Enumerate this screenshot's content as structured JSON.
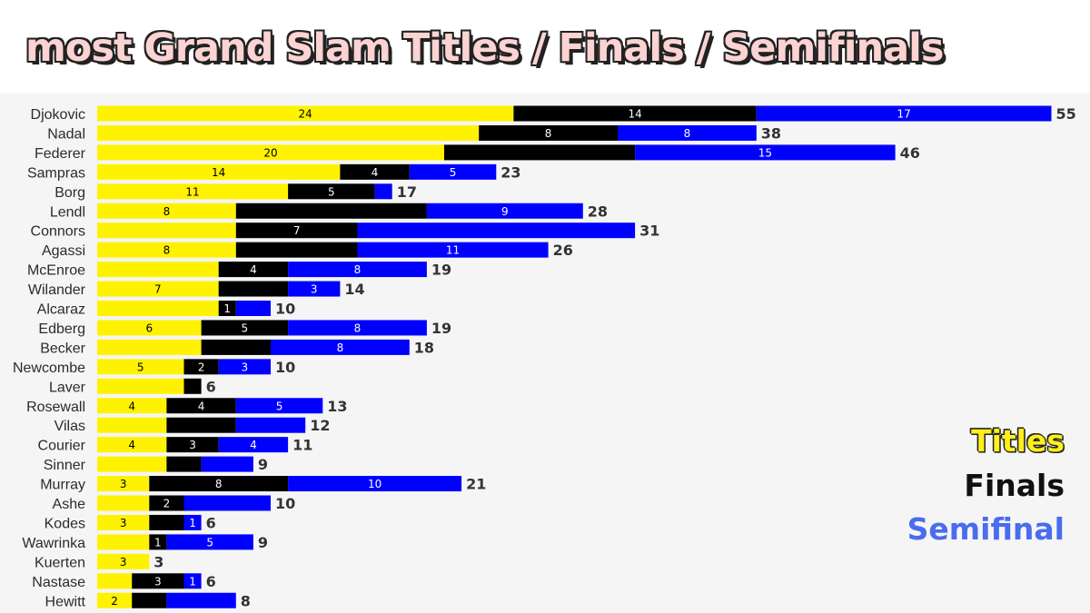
{
  "title": "most Grand Slam Titles / Finals / Semifinals",
  "legend": {
    "titles": "Titles",
    "finals": "Finals",
    "semifinal": "Semifinal"
  },
  "colors": {
    "titles": "#fff200",
    "finals": "#000000",
    "semifinals": "#0000ff",
    "background": "#f5f5f5",
    "title_fill": "#fbd3d3"
  },
  "chart_data": {
    "type": "bar",
    "orientation": "horizontal",
    "stacked": true,
    "title": "most Grand Slam Titles / Finals / Semifinals",
    "legend_position": "bottom-right",
    "grid": false,
    "series": [
      {
        "name": "Titles"
      },
      {
        "name": "Finals"
      },
      {
        "name": "Semifinal"
      }
    ],
    "players": [
      {
        "name": "Djokovic",
        "titles": 24,
        "titles_label": "24",
        "finals": 14,
        "finals_label": "14",
        "semis": 17,
        "semis_label": "17",
        "total": "55"
      },
      {
        "name": "Nadal",
        "titles": 22,
        "titles_label": "",
        "finals": 8,
        "finals_label": "8",
        "semis": 8,
        "semis_label": "8",
        "total": "38"
      },
      {
        "name": "Federer",
        "titles": 20,
        "titles_label": "20",
        "finals": 11,
        "finals_label": "",
        "semis": 15,
        "semis_label": "15",
        "total": "46"
      },
      {
        "name": "Sampras",
        "titles": 14,
        "titles_label": "14",
        "finals": 4,
        "finals_label": "4",
        "semis": 5,
        "semis_label": "5",
        "total": "23"
      },
      {
        "name": "Borg",
        "titles": 11,
        "titles_label": "11",
        "finals": 5,
        "finals_label": "5",
        "semis": 1,
        "semis_label": "",
        "total": "17"
      },
      {
        "name": "Lendl",
        "titles": 8,
        "titles_label": "8",
        "finals": 11,
        "finals_label": "",
        "semis": 9,
        "semis_label": "9",
        "total": "28"
      },
      {
        "name": "Connors",
        "titles": 8,
        "titles_label": "",
        "finals": 7,
        "finals_label": "7",
        "semis": 16,
        "semis_label": "",
        "total": "31"
      },
      {
        "name": "Agassi",
        "titles": 8,
        "titles_label": "8",
        "finals": 7,
        "finals_label": "",
        "semis": 11,
        "semis_label": "11",
        "total": "26"
      },
      {
        "name": "McEnroe",
        "titles": 7,
        "titles_label": "",
        "finals": 4,
        "finals_label": "4",
        "semis": 8,
        "semis_label": "8",
        "total": "19"
      },
      {
        "name": "Wilander",
        "titles": 7,
        "titles_label": "7",
        "finals": 4,
        "finals_label": "",
        "semis": 3,
        "semis_label": "3",
        "total": "14"
      },
      {
        "name": "Alcaraz",
        "titles": 7,
        "titles_label": "",
        "finals": 1,
        "finals_label": "1",
        "semis": 2,
        "semis_label": "",
        "total": "10"
      },
      {
        "name": "Edberg",
        "titles": 6,
        "titles_label": "6",
        "finals": 5,
        "finals_label": "5",
        "semis": 8,
        "semis_label": "8",
        "total": "19"
      },
      {
        "name": "Becker",
        "titles": 6,
        "titles_label": "",
        "finals": 4,
        "finals_label": "",
        "semis": 8,
        "semis_label": "8",
        "total": "18"
      },
      {
        "name": "Newcombe",
        "titles": 5,
        "titles_label": "5",
        "finals": 2,
        "finals_label": "2",
        "semis": 3,
        "semis_label": "3",
        "total": "10"
      },
      {
        "name": "Laver",
        "titles": 5,
        "titles_label": "",
        "finals": 1,
        "finals_label": "",
        "semis": 0,
        "semis_label": "",
        "total": "6"
      },
      {
        "name": "Rosewall",
        "titles": 4,
        "titles_label": "4",
        "finals": 4,
        "finals_label": "4",
        "semis": 5,
        "semis_label": "5",
        "total": "13"
      },
      {
        "name": "Vilas",
        "titles": 4,
        "titles_label": "",
        "finals": 4,
        "finals_label": "",
        "semis": 4,
        "semis_label": "",
        "total": "12"
      },
      {
        "name": "Courier",
        "titles": 4,
        "titles_label": "4",
        "finals": 3,
        "finals_label": "3",
        "semis": 4,
        "semis_label": "4",
        "total": "11"
      },
      {
        "name": "Sinner",
        "titles": 4,
        "titles_label": "",
        "finals": 2,
        "finals_label": "",
        "semis": 3,
        "semis_label": "",
        "total": "9"
      },
      {
        "name": "Murray",
        "titles": 3,
        "titles_label": "3",
        "finals": 8,
        "finals_label": "8",
        "semis": 10,
        "semis_label": "10",
        "total": "21"
      },
      {
        "name": "Ashe",
        "titles": 3,
        "titles_label": "",
        "finals": 2,
        "finals_label": "2",
        "semis": 5,
        "semis_label": "",
        "total": "10"
      },
      {
        "name": "Kodes",
        "titles": 3,
        "titles_label": "3",
        "finals": 2,
        "finals_label": "",
        "semis": 1,
        "semis_label": "1",
        "total": "6"
      },
      {
        "name": "Wawrinka",
        "titles": 3,
        "titles_label": "",
        "finals": 1,
        "finals_label": "1",
        "semis": 5,
        "semis_label": "5",
        "total": "9"
      },
      {
        "name": "Kuerten",
        "titles": 3,
        "titles_label": "3",
        "finals": 0,
        "finals_label": "",
        "semis": 0,
        "semis_label": "",
        "total": "3"
      },
      {
        "name": "Nastase",
        "titles": 2,
        "titles_label": "",
        "finals": 3,
        "finals_label": "3",
        "semis": 1,
        "semis_label": "1",
        "total": "6"
      },
      {
        "name": "Hewitt",
        "titles": 2,
        "titles_label": "2",
        "finals": 2,
        "finals_label": "",
        "semis": 4,
        "semis_label": "",
        "total": "8"
      }
    ]
  }
}
